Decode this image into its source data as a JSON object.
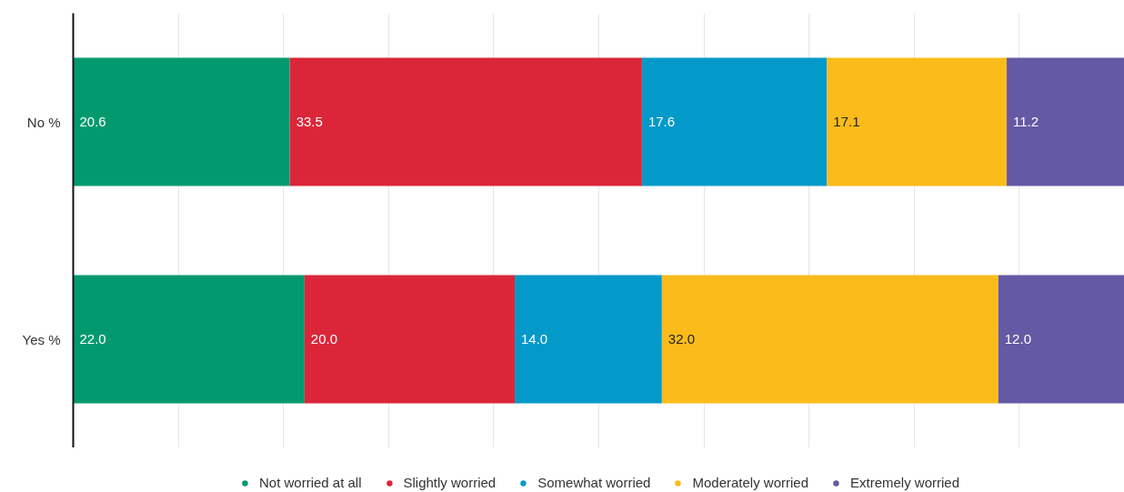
{
  "chart_data": {
    "type": "bar",
    "orientation": "horizontal",
    "stacked": true,
    "categories": [
      "No %",
      "Yes %"
    ],
    "series": [
      {
        "name": "Not worried at all",
        "color": "#03996f",
        "values": [
          20.6,
          22.0
        ],
        "value_labels": [
          "20.6",
          "22.0"
        ]
      },
      {
        "name": "Slightly worried",
        "color": "#db2639",
        "values": [
          33.5,
          20.0
        ],
        "value_labels": [
          "33.5",
          "20.0"
        ]
      },
      {
        "name": "Somewhat worried",
        "color": "#0399c9",
        "values": [
          17.6,
          14.0
        ],
        "value_labels": [
          "17.6",
          "14.0"
        ]
      },
      {
        "name": "Moderately worried",
        "color": "#fbbc1b",
        "values": [
          17.1,
          32.0
        ],
        "value_labels": [
          "17.1",
          "32.0"
        ]
      },
      {
        "name": "Extremely worried",
        "color": "#6459a4",
        "values": [
          11.2,
          12.0
        ],
        "value_labels": [
          "11.2",
          "12.0"
        ]
      }
    ],
    "xlim": [
      0,
      100
    ],
    "xticks": [
      {
        "value": 10,
        "label": null
      },
      {
        "value": 20,
        "label": null
      },
      {
        "value": 30,
        "label": null
      },
      {
        "value": 40,
        "label": null
      },
      {
        "value": 50,
        "label": null
      },
      {
        "value": 60,
        "label": null
      },
      {
        "value": 70,
        "label": null
      },
      {
        "value": 80,
        "label": null
      },
      {
        "value": 90,
        "label": null
      }
    ],
    "grid": "x",
    "legend": "bottom",
    "tick_labels": "y"
  }
}
